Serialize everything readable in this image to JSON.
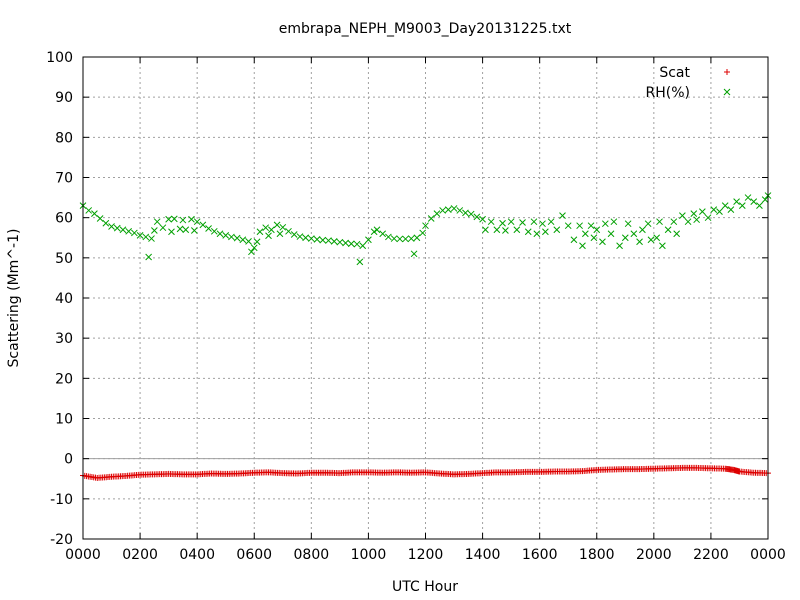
{
  "chart_data": {
    "type": "scatter",
    "title": "embrapa_NEPH_M9003_Day20131225.txt",
    "xlabel": "UTC Hour",
    "ylabel": "Scattering (Mm^-1)",
    "xlim": [
      0,
      24
    ],
    "ylim": [
      -20,
      100
    ],
    "grid": true,
    "legend_position": "top-right",
    "x_tick_labels": [
      "0000",
      "0200",
      "0400",
      "0600",
      "0800",
      "1000",
      "1200",
      "1400",
      "1600",
      "1800",
      "2000",
      "2200",
      "0000"
    ],
    "y_tick_labels": [
      "-20",
      "-10",
      "0",
      "10",
      "20",
      "30",
      "40",
      "50",
      "60",
      "70",
      "80",
      "90",
      "100"
    ],
    "colors": {
      "Scat": "#dd0000",
      "RH(%)": "#00a000",
      "zero_line": "#a0a0a0",
      "grid": "#a0a0a0"
    },
    "series": [
      {
        "name": "Scat",
        "marker": "plus",
        "points": [
          [
            0.0,
            -4.2
          ],
          [
            0.5,
            -4.8
          ],
          [
            1.0,
            -4.5
          ],
          [
            1.5,
            -4.3
          ],
          [
            2.0,
            -4.0
          ],
          [
            2.5,
            -3.9
          ],
          [
            3.0,
            -3.8
          ],
          [
            3.5,
            -3.9
          ],
          [
            4.0,
            -3.9
          ],
          [
            4.5,
            -3.7
          ],
          [
            5.0,
            -3.8
          ],
          [
            5.5,
            -3.7
          ],
          [
            6.0,
            -3.5
          ],
          [
            6.5,
            -3.4
          ],
          [
            7.0,
            -3.6
          ],
          [
            7.5,
            -3.7
          ],
          [
            8.0,
            -3.5
          ],
          [
            8.5,
            -3.5
          ],
          [
            9.0,
            -3.6
          ],
          [
            9.5,
            -3.4
          ],
          [
            10.0,
            -3.4
          ],
          [
            10.5,
            -3.5
          ],
          [
            11.0,
            -3.4
          ],
          [
            11.5,
            -3.5
          ],
          [
            12.0,
            -3.4
          ],
          [
            12.5,
            -3.7
          ],
          [
            13.0,
            -3.9
          ],
          [
            13.5,
            -3.8
          ],
          [
            14.0,
            -3.6
          ],
          [
            14.5,
            -3.4
          ],
          [
            15.0,
            -3.4
          ],
          [
            15.5,
            -3.3
          ],
          [
            16.0,
            -3.3
          ],
          [
            16.5,
            -3.2
          ],
          [
            17.0,
            -3.2
          ],
          [
            17.5,
            -3.1
          ],
          [
            18.0,
            -2.8
          ],
          [
            18.5,
            -2.7
          ],
          [
            19.0,
            -2.6
          ],
          [
            19.5,
            -2.6
          ],
          [
            20.0,
            -2.5
          ],
          [
            20.5,
            -2.4
          ],
          [
            21.0,
            -2.3
          ],
          [
            21.5,
            -2.3
          ],
          [
            22.0,
            -2.4
          ],
          [
            22.5,
            -2.5
          ],
          [
            22.8,
            -2.8
          ],
          [
            23.0,
            -3.2
          ],
          [
            23.5,
            -3.5
          ],
          [
            24.0,
            -3.6
          ]
        ]
      },
      {
        "name": "RH(%)",
        "marker": "cross",
        "points": [
          [
            0.0,
            63.0
          ],
          [
            0.2,
            61.8
          ],
          [
            0.4,
            61.0
          ],
          [
            0.6,
            59.8
          ],
          [
            0.8,
            58.6
          ],
          [
            1.0,
            57.8
          ],
          [
            1.2,
            57.4
          ],
          [
            1.4,
            57.0
          ],
          [
            1.6,
            56.6
          ],
          [
            1.8,
            56.2
          ],
          [
            2.0,
            55.6
          ],
          [
            2.2,
            55.2
          ],
          [
            2.3,
            50.2
          ],
          [
            2.4,
            54.8
          ],
          [
            2.5,
            56.8
          ],
          [
            2.6,
            59.0
          ],
          [
            2.8,
            57.5
          ],
          [
            3.0,
            59.6
          ],
          [
            3.1,
            56.5
          ],
          [
            3.2,
            59.7
          ],
          [
            3.4,
            57.2
          ],
          [
            3.5,
            59.4
          ],
          [
            3.6,
            57.0
          ],
          [
            3.8,
            59.6
          ],
          [
            3.9,
            56.8
          ],
          [
            4.0,
            59.0
          ],
          [
            4.2,
            58.2
          ],
          [
            4.4,
            57.3
          ],
          [
            4.6,
            56.6
          ],
          [
            4.8,
            56.0
          ],
          [
            5.0,
            55.6
          ],
          [
            5.2,
            55.2
          ],
          [
            5.4,
            54.9
          ],
          [
            5.6,
            54.5
          ],
          [
            5.8,
            54.1
          ],
          [
            5.9,
            51.5
          ],
          [
            6.0,
            52.5
          ],
          [
            6.1,
            54.0
          ],
          [
            6.2,
            56.5
          ],
          [
            6.4,
            57.5
          ],
          [
            6.5,
            55.5
          ],
          [
            6.6,
            57.0
          ],
          [
            6.8,
            58.2
          ],
          [
            6.9,
            56.0
          ],
          [
            7.0,
            57.6
          ],
          [
            7.2,
            56.6
          ],
          [
            7.4,
            55.8
          ],
          [
            7.6,
            55.3
          ],
          [
            7.8,
            55.0
          ],
          [
            8.0,
            54.8
          ],
          [
            8.2,
            54.6
          ],
          [
            8.4,
            54.4
          ],
          [
            8.6,
            54.3
          ],
          [
            8.8,
            54.1
          ],
          [
            9.0,
            53.9
          ],
          [
            9.2,
            53.7
          ],
          [
            9.4,
            53.5
          ],
          [
            9.6,
            53.4
          ],
          [
            9.7,
            49.0
          ],
          [
            9.8,
            53.0
          ],
          [
            10.0,
            54.5
          ],
          [
            10.2,
            56.5
          ],
          [
            10.3,
            57.0
          ],
          [
            10.5,
            56.0
          ],
          [
            10.7,
            55.2
          ],
          [
            10.9,
            54.8
          ],
          [
            11.1,
            54.7
          ],
          [
            11.3,
            54.7
          ],
          [
            11.5,
            54.8
          ],
          [
            11.6,
            51.0
          ],
          [
            11.7,
            55.0
          ],
          [
            11.9,
            56.2
          ],
          [
            12.0,
            58.0
          ],
          [
            12.2,
            59.8
          ],
          [
            12.4,
            61.0
          ],
          [
            12.6,
            61.8
          ],
          [
            12.8,
            62.0
          ],
          [
            13.0,
            62.3
          ],
          [
            13.2,
            61.8
          ],
          [
            13.4,
            61.2
          ],
          [
            13.6,
            60.9
          ],
          [
            13.8,
            60.2
          ],
          [
            14.0,
            59.6
          ],
          [
            14.1,
            57.0
          ],
          [
            14.3,
            59.0
          ],
          [
            14.5,
            57.0
          ],
          [
            14.7,
            58.6
          ],
          [
            14.8,
            56.8
          ],
          [
            15.0,
            59.0
          ],
          [
            15.2,
            57.0
          ],
          [
            15.4,
            58.8
          ],
          [
            15.6,
            56.5
          ],
          [
            15.8,
            59.0
          ],
          [
            15.9,
            56.0
          ],
          [
            16.1,
            58.5
          ],
          [
            16.2,
            56.5
          ],
          [
            16.4,
            59.0
          ],
          [
            16.6,
            57.0
          ],
          [
            16.8,
            60.5
          ],
          [
            17.0,
            58.0
          ],
          [
            17.2,
            54.5
          ],
          [
            17.4,
            58.0
          ],
          [
            17.5,
            53.0
          ],
          [
            17.6,
            56.0
          ],
          [
            17.8,
            58.0
          ],
          [
            17.9,
            55.0
          ],
          [
            18.0,
            57.0
          ],
          [
            18.2,
            54.0
          ],
          [
            18.3,
            58.5
          ],
          [
            18.5,
            56.0
          ],
          [
            18.6,
            59.0
          ],
          [
            18.8,
            53.0
          ],
          [
            19.0,
            55.0
          ],
          [
            19.1,
            58.5
          ],
          [
            19.3,
            56.0
          ],
          [
            19.5,
            54.0
          ],
          [
            19.6,
            57.0
          ],
          [
            19.8,
            58.5
          ],
          [
            19.9,
            54.5
          ],
          [
            20.1,
            55.0
          ],
          [
            20.2,
            59.0
          ],
          [
            20.3,
            53.0
          ],
          [
            20.5,
            57.0
          ],
          [
            20.7,
            59.0
          ],
          [
            20.8,
            56.0
          ],
          [
            21.0,
            60.5
          ],
          [
            21.2,
            59.0
          ],
          [
            21.4,
            61.0
          ],
          [
            21.5,
            59.5
          ],
          [
            21.7,
            61.5
          ],
          [
            21.9,
            60.0
          ],
          [
            22.1,
            62.0
          ],
          [
            22.3,
            61.5
          ],
          [
            22.5,
            63.0
          ],
          [
            22.7,
            62.0
          ],
          [
            22.9,
            64.0
          ],
          [
            23.1,
            63.0
          ],
          [
            23.3,
            65.0
          ],
          [
            23.5,
            64.0
          ],
          [
            23.7,
            63.0
          ],
          [
            23.9,
            64.5
          ],
          [
            24.0,
            65.5
          ]
        ]
      }
    ]
  }
}
